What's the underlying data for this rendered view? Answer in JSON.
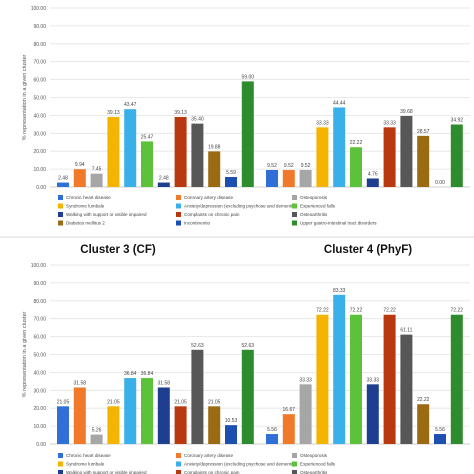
{
  "legend": {
    "items": [
      {
        "label": "Chronic heart disease",
        "color": "#2f6fd6"
      },
      {
        "label": "Coronary artery disease",
        "color": "#f07a2a"
      },
      {
        "label": "Osteoporosis",
        "color": "#a6a6a6"
      },
      {
        "label": "Syndrome lumbale",
        "color": "#f4b400"
      },
      {
        "label": "Anxiety/depression (excluding psychose and dementia)",
        "color": "#3ab0ea"
      },
      {
        "label": "Experienced falls",
        "color": "#5cc23a"
      },
      {
        "label": "Walking with support or visible impaired",
        "color": "#1e3f8f"
      },
      {
        "label": "Complaints on chronic pain",
        "color": "#b8380f"
      },
      {
        "label": "Osteoarthritis",
        "color": "#575757"
      },
      {
        "label": "Diabetes mellitus 2",
        "color": "#9c6a12"
      },
      {
        "label": "Incontinentio",
        "color": "#1d4fb0"
      },
      {
        "label": "Upper gastro-intestinal tract disorders",
        "color": "#2e8b2e"
      }
    ]
  },
  "chart_data": [
    {
      "type": "bar",
      "ylabel": "% representation in a given cluster",
      "ylim": [
        0,
        100
      ],
      "yticks": [
        "0.00",
        "10.00",
        "20.00",
        "30.00",
        "40.00",
        "50.00",
        "60.00",
        "70.00",
        "80.00",
        "90.00",
        "100.00"
      ],
      "legend_placement": "bottom",
      "groups": [
        {
          "title": "",
          "values": [
            2.48,
            9.94,
            7.45,
            39.13,
            43.47,
            25.47,
            2.48,
            39.13,
            35.4,
            19.88,
            5.59,
            59.0
          ],
          "labels": [
            "2.48",
            "9.94",
            "7.45",
            "39.13",
            "43.47",
            "25.47",
            "2.48",
            "39.13",
            "35.40",
            "19.88",
            "5.59",
            "59.00"
          ]
        },
        {
          "title": "",
          "values": [
            9.52,
            9.52,
            9.52,
            33.33,
            44.44,
            22.22,
            4.76,
            33.33,
            39.68,
            28.57,
            0.0,
            34.92
          ],
          "labels": [
            "9.52",
            "9.52",
            "9.52",
            "33.33",
            "44.44",
            "22.22",
            "4.76",
            "33.33",
            "39.68",
            "28.57",
            "0.00",
            "34.92"
          ]
        }
      ]
    },
    {
      "type": "bar",
      "ylabel": "% representation in a given cluster",
      "ylim": [
        0,
        100
      ],
      "yticks": [
        "0.00",
        "10.00",
        "20.00",
        "30.00",
        "40.00",
        "50.00",
        "60.00",
        "70.00",
        "80.00",
        "90.00",
        "100.00"
      ],
      "legend_placement": "bottom",
      "groups": [
        {
          "title": "Cluster 3 (CF)",
          "values": [
            21.05,
            31.58,
            5.26,
            21.05,
            36.84,
            36.84,
            31.58,
            21.05,
            52.63,
            21.05,
            10.53,
            52.63
          ],
          "labels": [
            "21.05",
            "31.58",
            "5.26",
            "21.05",
            "36.84",
            "36.84",
            "31.58",
            "21.05",
            "52.63",
            "21.05",
            "10.53",
            "52.63"
          ]
        },
        {
          "title": "Cluster 4 (PhyF)",
          "values": [
            5.56,
            16.67,
            33.33,
            72.22,
            83.33,
            72.22,
            33.33,
            72.22,
            61.11,
            22.22,
            5.56,
            72.22
          ],
          "labels": [
            "5.56",
            "16.67",
            "33.33",
            "72.22",
            "83.33",
            "72.22",
            "33.33",
            "72.22",
            "61.11",
            "22.22",
            "5.56",
            "72.22"
          ]
        }
      ]
    }
  ]
}
